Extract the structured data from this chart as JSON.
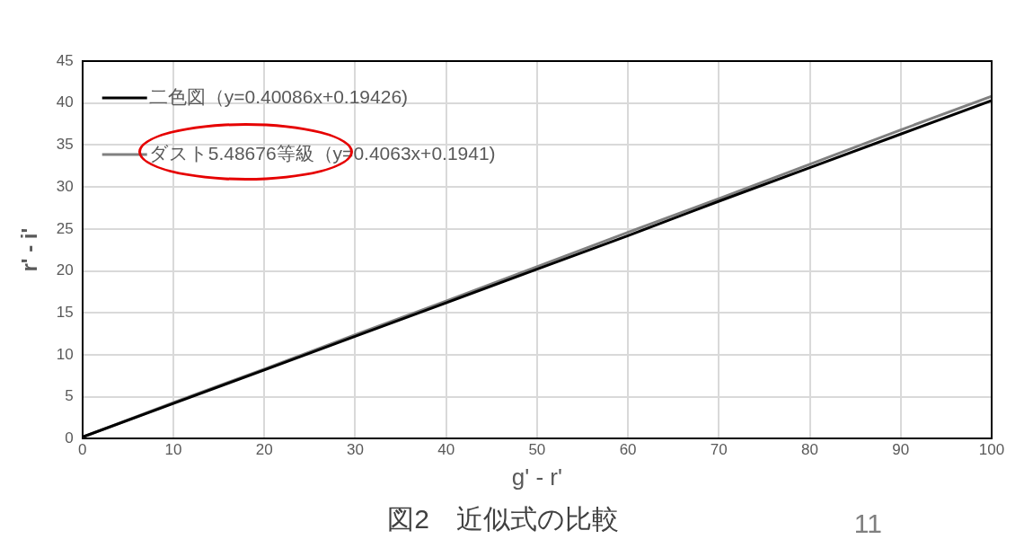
{
  "chart_data": {
    "type": "line",
    "title": "図2　近似式の比較",
    "xlabel": "g' - r'",
    "ylabel": "r' - i'",
    "annotations": [
      "11"
    ],
    "x": [
      0,
      10,
      20,
      30,
      40,
      50,
      60,
      70,
      80,
      90,
      100
    ],
    "series": [
      {
        "name": "二色図（y=0.40086x+0.19426)",
        "color": "#000000",
        "values": [
          0.2,
          4.2,
          8.2,
          12.2,
          16.2,
          20.2,
          24.2,
          28.3,
          32.3,
          36.3,
          40.3
        ]
      },
      {
        "name": "ダスト5.48676等級（y=0.4063x+0.1941)",
        "color": "#808080",
        "values": [
          0.2,
          4.3,
          8.3,
          12.4,
          16.4,
          20.5,
          24.6,
          28.6,
          32.7,
          36.8,
          40.8
        ]
      }
    ],
    "xlim": [
      0,
      100
    ],
    "xticks": [
      0,
      10,
      20,
      30,
      40,
      50,
      60,
      70,
      80,
      90,
      100
    ],
    "ylim": [
      0,
      45
    ],
    "yticks": [
      0,
      5,
      10,
      15,
      20,
      25,
      30,
      35,
      40,
      45
    ],
    "grid": true,
    "legend": "top left",
    "marker": "none",
    "line_style": "solid"
  }
}
